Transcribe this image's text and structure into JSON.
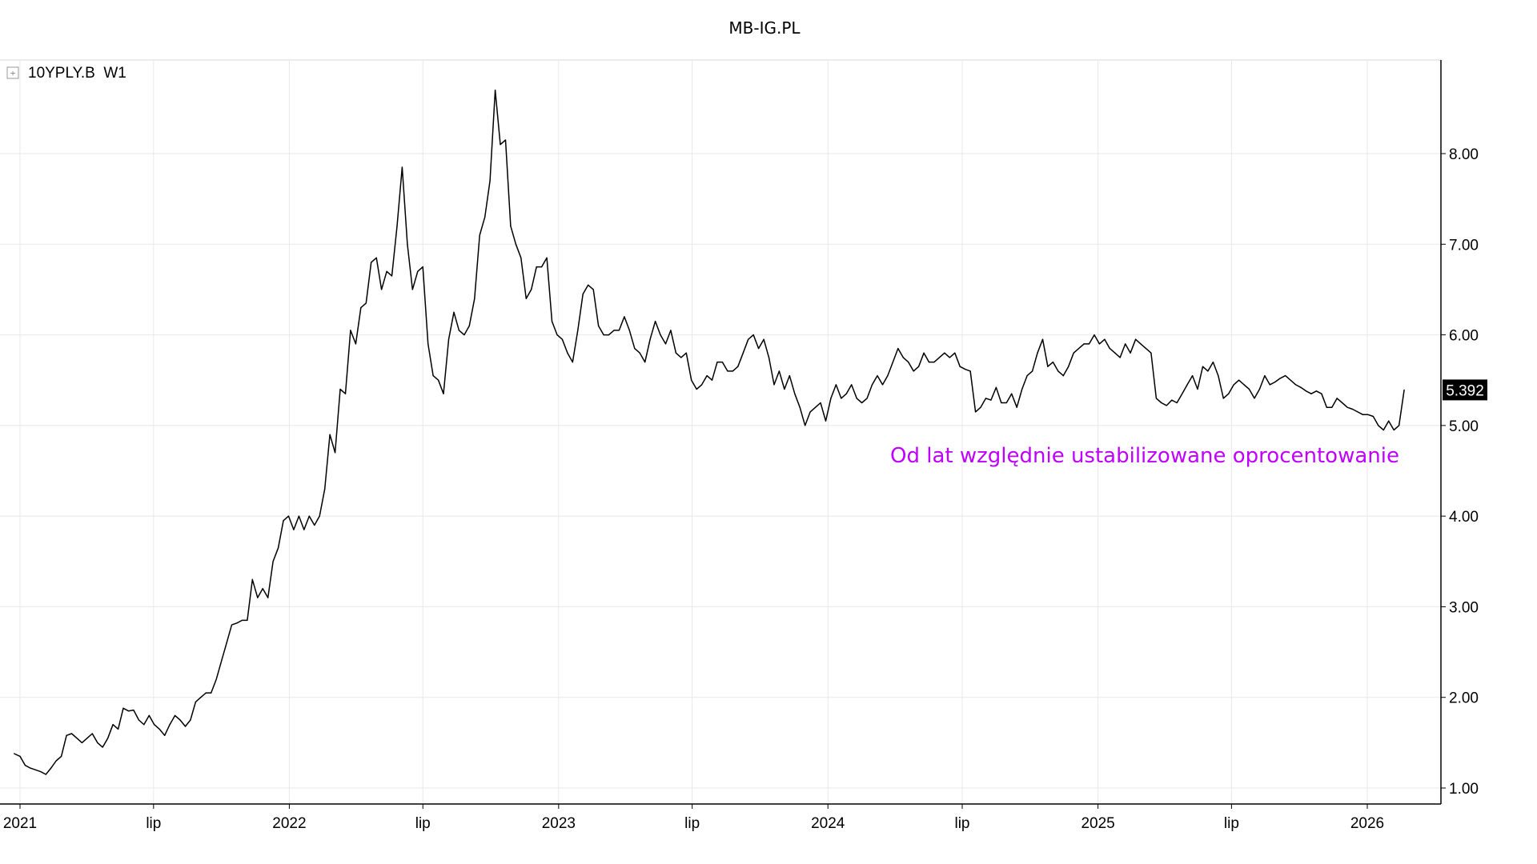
{
  "chart_data": {
    "type": "line",
    "title": "MB-IG.PL",
    "series": [
      {
        "name": "10YPLY.B",
        "timeframe": "W1",
        "x": [
          "2020-12-24",
          "2021-01-01",
          "2021-01-08",
          "2021-01-15",
          "2021-01-22",
          "2021-01-29",
          "2021-02-05",
          "2021-02-12",
          "2021-02-19",
          "2021-02-26",
          "2021-03-05",
          "2021-03-12",
          "2021-03-19",
          "2021-03-26",
          "2021-04-02",
          "2021-04-09",
          "2021-04-16",
          "2021-04-23",
          "2021-04-30",
          "2021-05-07",
          "2021-05-14",
          "2021-05-21",
          "2021-05-28",
          "2021-06-04",
          "2021-06-11",
          "2021-06-18",
          "2021-06-25",
          "2021-07-02",
          "2021-07-09",
          "2021-07-16",
          "2021-07-23",
          "2021-07-30",
          "2021-08-06",
          "2021-08-13",
          "2021-08-20",
          "2021-08-27",
          "2021-09-03",
          "2021-09-10",
          "2021-09-17",
          "2021-09-24",
          "2021-10-01",
          "2021-10-08",
          "2021-10-15",
          "2021-10-22",
          "2021-10-29",
          "2021-11-05",
          "2021-11-12",
          "2021-11-19",
          "2021-11-26",
          "2021-12-03",
          "2021-12-10",
          "2021-12-17",
          "2021-12-24",
          "2021-12-31",
          "2022-01-07",
          "2022-01-14",
          "2022-01-21",
          "2022-01-28",
          "2022-02-04",
          "2022-02-11",
          "2022-02-18",
          "2022-02-25",
          "2022-03-04",
          "2022-03-11",
          "2022-03-18",
          "2022-03-25",
          "2022-04-01",
          "2022-04-08",
          "2022-04-15",
          "2022-04-22",
          "2022-04-29",
          "2022-05-06",
          "2022-05-13",
          "2022-05-20",
          "2022-05-27",
          "2022-06-03",
          "2022-06-10",
          "2022-06-17",
          "2022-06-24",
          "2022-07-01",
          "2022-07-08",
          "2022-07-15",
          "2022-07-22",
          "2022-07-29",
          "2022-08-05",
          "2022-08-12",
          "2022-08-19",
          "2022-08-26",
          "2022-09-02",
          "2022-09-09",
          "2022-09-16",
          "2022-09-23",
          "2022-09-30",
          "2022-10-07",
          "2022-10-14",
          "2022-10-21",
          "2022-10-28",
          "2022-11-04",
          "2022-11-11",
          "2022-11-18",
          "2022-11-25",
          "2022-12-02",
          "2022-12-09",
          "2022-12-16",
          "2022-12-23",
          "2022-12-30",
          "2023-01-06",
          "2023-01-13",
          "2023-01-20",
          "2023-01-27",
          "2023-02-03",
          "2023-02-10",
          "2023-02-17",
          "2023-02-24",
          "2023-03-03",
          "2023-03-10",
          "2023-03-17",
          "2023-03-24",
          "2023-03-31",
          "2023-04-07",
          "2023-04-14",
          "2023-04-21",
          "2023-04-28",
          "2023-05-05",
          "2023-05-12",
          "2023-05-19",
          "2023-05-26",
          "2023-06-02",
          "2023-06-09",
          "2023-06-16",
          "2023-06-23",
          "2023-06-30",
          "2023-07-07",
          "2023-07-14",
          "2023-07-21",
          "2023-07-28",
          "2023-08-04",
          "2023-08-11",
          "2023-08-18",
          "2023-08-25",
          "2023-09-01",
          "2023-09-08",
          "2023-09-15",
          "2023-09-22",
          "2023-09-29",
          "2023-10-06",
          "2023-10-13",
          "2023-10-20",
          "2023-10-27",
          "2023-11-03",
          "2023-11-10",
          "2023-11-17",
          "2023-11-24",
          "2023-12-01",
          "2023-12-08",
          "2023-12-15",
          "2023-12-22",
          "2023-12-29",
          "2024-01-05",
          "2024-01-12",
          "2024-01-19",
          "2024-01-26",
          "2024-02-02",
          "2024-02-09",
          "2024-02-16",
          "2024-02-23",
          "2024-03-01",
          "2024-03-08",
          "2024-03-15",
          "2024-03-22",
          "2024-03-29",
          "2024-04-05",
          "2024-04-12",
          "2024-04-19",
          "2024-04-26",
          "2024-05-03",
          "2024-05-10",
          "2024-05-17",
          "2024-05-24",
          "2024-05-31",
          "2024-06-07",
          "2024-06-14",
          "2024-06-21",
          "2024-06-28",
          "2024-07-05",
          "2024-07-12",
          "2024-07-19",
          "2024-07-26",
          "2024-08-02",
          "2024-08-09",
          "2024-08-16",
          "2024-08-23",
          "2024-08-30",
          "2024-09-06",
          "2024-09-13",
          "2024-09-20",
          "2024-09-27",
          "2024-10-04",
          "2024-10-11",
          "2024-10-18",
          "2024-10-25",
          "2024-11-01",
          "2024-11-08",
          "2024-11-15",
          "2024-11-22",
          "2024-11-29",
          "2024-12-06",
          "2024-12-13",
          "2024-12-20",
          "2024-12-27",
          "2025-01-03",
          "2025-01-10",
          "2025-01-17",
          "2025-01-24",
          "2025-01-31",
          "2025-02-07",
          "2025-02-14",
          "2025-02-21",
          "2025-02-28",
          "2025-03-07",
          "2025-03-14",
          "2025-03-21",
          "2025-03-28",
          "2025-04-04",
          "2025-04-11",
          "2025-04-18",
          "2025-04-25",
          "2025-05-02",
          "2025-05-09",
          "2025-05-16",
          "2025-05-23",
          "2025-05-30",
          "2025-06-06",
          "2025-06-13",
          "2025-06-20",
          "2025-06-27",
          "2025-07-04",
          "2025-07-11",
          "2025-07-18",
          "2025-07-25",
          "2025-08-01",
          "2025-08-08",
          "2025-08-15",
          "2025-08-22",
          "2025-08-29",
          "2025-09-05",
          "2025-09-12",
          "2025-09-19",
          "2025-09-26",
          "2025-10-03",
          "2025-10-10",
          "2025-10-17",
          "2025-10-24",
          "2025-10-31",
          "2025-11-07",
          "2025-11-14",
          "2025-11-21",
          "2025-11-28",
          "2025-12-05",
          "2025-12-12",
          "2025-12-19",
          "2025-12-26",
          "2026-01-02",
          "2026-01-09",
          "2026-01-16",
          "2026-01-23",
          "2026-01-30",
          "2026-02-06",
          "2026-02-13",
          "2026-02-20"
        ],
        "values": [
          1.38,
          1.35,
          1.25,
          1.22,
          1.2,
          1.18,
          1.15,
          1.22,
          1.3,
          1.35,
          1.58,
          1.6,
          1.55,
          1.5,
          1.55,
          1.6,
          1.5,
          1.45,
          1.55,
          1.7,
          1.65,
          1.88,
          1.85,
          1.86,
          1.75,
          1.7,
          1.8,
          1.7,
          1.65,
          1.58,
          1.7,
          1.8,
          1.75,
          1.68,
          1.75,
          1.95,
          2.0,
          2.05,
          2.05,
          2.2,
          2.4,
          2.6,
          2.8,
          2.82,
          2.85,
          2.85,
          3.3,
          3.1,
          3.2,
          3.1,
          3.5,
          3.65,
          3.95,
          4.0,
          3.85,
          4.0,
          3.85,
          4.0,
          3.9,
          4.0,
          4.3,
          4.9,
          4.7,
          5.4,
          5.35,
          6.05,
          5.9,
          6.3,
          6.35,
          6.8,
          6.85,
          6.5,
          6.7,
          6.65,
          7.2,
          7.85,
          7.0,
          6.5,
          6.7,
          6.75,
          5.9,
          5.55,
          5.5,
          5.35,
          5.95,
          6.25,
          6.05,
          6.0,
          6.1,
          6.4,
          7.1,
          7.3,
          7.7,
          8.7,
          8.1,
          8.15,
          7.2,
          7.0,
          6.85,
          6.4,
          6.5,
          6.75,
          6.75,
          6.85,
          6.15,
          6.0,
          5.95,
          5.8,
          5.7,
          6.05,
          6.45,
          6.55,
          6.5,
          6.1,
          6.0,
          6.0,
          6.05,
          6.05,
          6.2,
          6.05,
          5.85,
          5.8,
          5.7,
          5.95,
          6.15,
          6.0,
          5.9,
          6.05,
          5.8,
          5.75,
          5.8,
          5.5,
          5.4,
          5.45,
          5.55,
          5.5,
          5.7,
          5.7,
          5.6,
          5.6,
          5.65,
          5.8,
          5.95,
          6.0,
          5.85,
          5.95,
          5.75,
          5.45,
          5.6,
          5.4,
          5.55,
          5.35,
          5.2,
          5.0,
          5.15,
          5.2,
          5.25,
          5.05,
          5.3,
          5.45,
          5.3,
          5.35,
          5.45,
          5.3,
          5.25,
          5.3,
          5.45,
          5.55,
          5.45,
          5.55,
          5.7,
          5.85,
          5.75,
          5.7,
          5.6,
          5.65,
          5.8,
          5.7,
          5.7,
          5.75,
          5.8,
          5.75,
          5.8,
          5.65,
          5.62,
          5.6,
          5.15,
          5.2,
          5.3,
          5.28,
          5.42,
          5.25,
          5.25,
          5.35,
          5.2,
          5.4,
          5.55,
          5.6,
          5.8,
          5.95,
          5.65,
          5.7,
          5.6,
          5.55,
          5.65,
          5.8,
          5.85,
          5.9,
          5.9,
          6.0,
          5.9,
          5.95,
          5.85,
          5.8,
          5.75,
          5.9,
          5.8,
          5.95,
          5.9,
          5.85,
          5.8,
          5.3,
          5.25,
          5.22,
          5.28,
          5.25,
          5.35,
          5.45,
          5.55,
          5.4,
          5.65,
          5.6,
          5.7,
          5.55,
          5.3,
          5.35,
          5.45,
          5.5,
          5.45,
          5.4,
          5.3,
          5.4,
          5.55,
          5.45,
          5.48,
          5.52,
          5.55,
          5.5,
          5.45,
          5.42,
          5.38,
          5.35,
          5.38,
          5.35,
          5.2,
          5.2,
          5.3,
          5.25,
          5.2,
          5.18,
          5.15,
          5.12,
          5.12,
          5.1,
          5.0,
          4.95,
          5.05,
          4.95,
          5.0,
          5.392
        ]
      }
    ],
    "last_value_label": "5.392",
    "y_ticks": [
      "1.00",
      "2.00",
      "3.00",
      "4.00",
      "5.00",
      "6.00",
      "7.00",
      "8.00"
    ],
    "ylim": [
      0.8,
      9.0
    ],
    "x_ticks": [
      {
        "label": "2021",
        "date": "2021-01-01"
      },
      {
        "label": "lip",
        "date": "2021-07-01"
      },
      {
        "label": "2022",
        "date": "2022-01-01"
      },
      {
        "label": "lip",
        "date": "2022-07-01"
      },
      {
        "label": "2023",
        "date": "2023-01-01"
      },
      {
        "label": "lip",
        "date": "2023-07-01"
      },
      {
        "label": "2024",
        "date": "2024-01-01"
      },
      {
        "label": "lip",
        "date": "2024-07-01"
      },
      {
        "label": "2025",
        "date": "2025-01-01"
      },
      {
        "label": "lip",
        "date": "2025-07-01"
      },
      {
        "label": "2026",
        "date": "2026-01-01"
      }
    ],
    "annotation": {
      "text": "Od lat względnie ustabilizowane oprocentowanie",
      "color": "#c000ff"
    },
    "legend": {
      "text": "10YPLY.B  W1",
      "expand_icon": "[+]",
      "placement": "top-left"
    },
    "grid": true,
    "line_color": "#000000",
    "grid_color": "#e8e8e8"
  }
}
